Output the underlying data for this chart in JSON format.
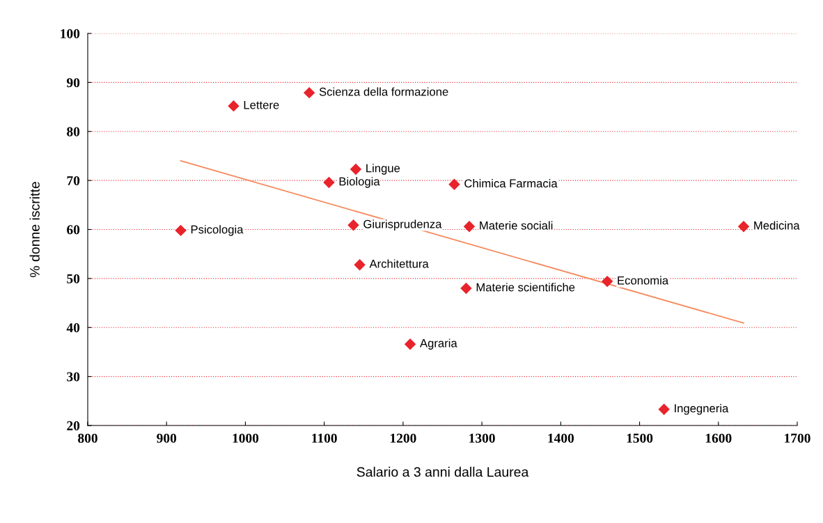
{
  "chart_data": {
    "type": "scatter",
    "xlabel": "Salario a 3 anni dalla Laurea",
    "ylabel": "% donne iscritte",
    "xlim": [
      800,
      1700
    ],
    "xticks": [
      800,
      900,
      1000,
      1100,
      1200,
      1300,
      1400,
      1500,
      1600,
      1700
    ],
    "ylim": [
      20,
      100
    ],
    "yticks": [
      20,
      30,
      40,
      50,
      60,
      70,
      80,
      90,
      100
    ],
    "grid": "y",
    "legend": false,
    "series": [
      {
        "marker": "diamond",
        "color": "#e8232b",
        "x": [
          985,
          1081,
          1140,
          1106,
          1265,
          918,
          1137,
          1284,
          1632,
          1145,
          1459,
          1280,
          1209,
          1531
        ],
        "values": [
          85.2,
          87.9,
          72.3,
          69.6,
          69.2,
          59.8,
          60.9,
          60.6,
          60.6,
          52.8,
          49.4,
          48.0,
          36.6,
          23.3
        ]
      },
      {
        "type": "line",
        "marker": "none",
        "color": "#f58a5e",
        "x": [
          918,
          1632
        ],
        "values": [
          74.0,
          40.9
        ]
      }
    ],
    "annotations": [
      {
        "text": "Lettere",
        "x": 985,
        "y": 85.2
      },
      {
        "text": "Scienza della formazione",
        "x": 1081,
        "y": 87.9
      },
      {
        "text": "Lingue",
        "x": 1140,
        "y": 72.3
      },
      {
        "text": "Biologia",
        "x": 1106,
        "y": 69.6
      },
      {
        "text": "Chimica Farmacia",
        "x": 1265,
        "y": 69.2
      },
      {
        "text": "Psicologia",
        "x": 918,
        "y": 59.8
      },
      {
        "text": "Giurisprudenza",
        "x": 1137,
        "y": 60.9
      },
      {
        "text": "Materie sociali",
        "x": 1284,
        "y": 60.6
      },
      {
        "text": "Medicina",
        "x": 1632,
        "y": 60.6
      },
      {
        "text": "Architettura",
        "x": 1145,
        "y": 52.8
      },
      {
        "text": "Economia",
        "x": 1459,
        "y": 49.4
      },
      {
        "text": "Materie scientifiche",
        "x": 1280,
        "y": 48.0
      },
      {
        "text": "Agraria",
        "x": 1209,
        "y": 36.6
      },
      {
        "text": "Ingegneria",
        "x": 1531,
        "y": 23.3
      }
    ]
  }
}
